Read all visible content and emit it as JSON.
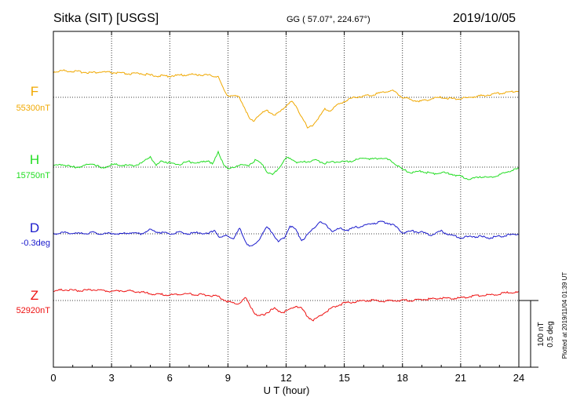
{
  "header": {
    "station": "Sitka (SIT)  [USGS]",
    "coords": "GG ( 57.07°, 224.67°)",
    "date": "2019/10/05"
  },
  "footer": {
    "xlabel": "U T (hour)",
    "scale_nt": "100 nT",
    "scale_deg": "0.5 deg",
    "plotted": "Plotted at 2019/11/04 01:39 UT"
  },
  "chart_data": {
    "type": "line",
    "title": "Sitka (SIT)  [USGS]",
    "xlabel": "U T (hour)",
    "xlim": [
      0,
      24
    ],
    "x_ticks": [
      "0",
      "3",
      "6",
      "9",
      "12",
      "15",
      "18",
      "21",
      "24"
    ],
    "grid": true,
    "series": [
      {
        "name": "F",
        "baseline_label": "55300nT",
        "unit": "nT",
        "color": "#f0a800",
        "x": [
          0,
          0.5,
          1,
          1.5,
          2,
          2.5,
          3,
          3.5,
          4,
          4.5,
          5,
          5.5,
          6,
          6.5,
          7,
          7.5,
          8,
          8.5,
          8.8,
          9,
          9.3,
          9.6,
          9.9,
          10.1,
          10.3,
          10.6,
          11,
          11.4,
          11.7,
          12,
          12.3,
          12.6,
          12.9,
          13.1,
          13.3,
          13.7,
          14,
          14.3,
          14.6,
          15,
          15.5,
          16,
          16.5,
          17,
          17.5,
          18,
          18.5,
          19,
          19.5,
          20,
          20.5,
          21,
          21.5,
          22,
          22.5,
          23,
          23.5,
          24
        ],
        "values": [
          38,
          40,
          39,
          38,
          37,
          38,
          37,
          36,
          35,
          36,
          33,
          32,
          32,
          33,
          34,
          34,
          33,
          31,
          10,
          3,
          2,
          0,
          -18,
          -32,
          -36,
          -26,
          -20,
          -26,
          -22,
          -12,
          -6,
          -18,
          -34,
          -46,
          -44,
          -30,
          -18,
          -20,
          -12,
          -6,
          0,
          2,
          4,
          8,
          10,
          0,
          -4,
          -6,
          -2,
          0,
          -2,
          -2,
          0,
          2,
          4,
          6,
          8,
          10
        ]
      },
      {
        "name": "H",
        "baseline_label": "15750nT",
        "unit": "nT",
        "color": "#22dd22",
        "x": [
          0,
          0.5,
          1,
          1.5,
          2,
          2.5,
          3,
          3.5,
          4,
          4.5,
          5,
          5.3,
          5.6,
          6,
          6.5,
          7,
          7.5,
          8,
          8.2,
          8.5,
          8.8,
          9,
          9.3,
          9.6,
          10,
          10.4,
          10.8,
          11,
          11.3,
          11.6,
          12,
          12.3,
          12.6,
          13,
          13.5,
          14,
          14.5,
          15,
          15.5,
          16,
          16.5,
          17,
          17.5,
          18,
          18.5,
          19,
          19.5,
          20,
          20.5,
          21,
          21.5,
          22,
          22.5,
          23,
          23.5,
          24
        ],
        "values": [
          2,
          4,
          0,
          1,
          6,
          -2,
          4,
          3,
          2,
          5,
          16,
          2,
          10,
          6,
          4,
          8,
          6,
          10,
          4,
          22,
          4,
          -4,
          0,
          4,
          2,
          10,
          4,
          -6,
          -12,
          -2,
          14,
          12,
          6,
          8,
          10,
          6,
          8,
          8,
          10,
          14,
          12,
          14,
          8,
          -4,
          -8,
          -6,
          -10,
          -8,
          -10,
          -14,
          -18,
          -14,
          -16,
          -12,
          -6,
          -2
        ]
      },
      {
        "name": "D",
        "baseline_label": "-0.3deg",
        "unit": "deg",
        "color": "#1a1acc",
        "x": [
          0,
          0.5,
          1,
          1.5,
          2,
          2.5,
          3,
          3.5,
          4,
          4.5,
          5,
          5.5,
          6,
          6.5,
          7,
          7.5,
          8,
          8.3,
          8.6,
          9,
          9.3,
          9.6,
          9.9,
          10.1,
          10.4,
          10.7,
          11,
          11.3,
          11.6,
          11.9,
          12.2,
          12.5,
          12.8,
          13.1,
          13.4,
          13.7,
          14,
          14.4,
          14.8,
          15.2,
          15.6,
          16,
          16.5,
          17,
          17.5,
          18,
          18.5,
          19,
          19.5,
          20,
          20.5,
          21,
          21.5,
          22,
          22.5,
          23,
          23.5,
          24
        ],
        "values": [
          0,
          2,
          1,
          0,
          2,
          0,
          1,
          0,
          2,
          0,
          6,
          2,
          0,
          2,
          0,
          2,
          0,
          6,
          -6,
          -2,
          -8,
          8,
          -10,
          -20,
          -16,
          -4,
          10,
          2,
          -12,
          -6,
          12,
          6,
          -10,
          -2,
          8,
          18,
          14,
          4,
          8,
          6,
          10,
          12,
          16,
          18,
          14,
          2,
          4,
          2,
          -2,
          4,
          -2,
          -6,
          -4,
          -4,
          -6,
          -4,
          -2,
          0
        ]
      },
      {
        "name": "Z",
        "baseline_label": "52920nT",
        "unit": "nT",
        "color": "#ee1111",
        "x": [
          0,
          0.5,
          1,
          1.5,
          2,
          2.5,
          3,
          3.5,
          4,
          4.5,
          5,
          5.5,
          6,
          6.5,
          7,
          7.5,
          8,
          8.5,
          9,
          9.3,
          9.6,
          9.9,
          10.2,
          10.5,
          10.8,
          11,
          11.4,
          11.8,
          12.2,
          12.5,
          12.8,
          13.1,
          13.4,
          13.8,
          14.2,
          14.6,
          15,
          15.5,
          16,
          16.5,
          17,
          17.5,
          18,
          18.5,
          19,
          19.5,
          20,
          20.5,
          21,
          21.5,
          22,
          22.5,
          23,
          23.5,
          24
        ],
        "values": [
          14,
          16,
          15,
          15,
          16,
          15,
          14,
          15,
          14,
          13,
          10,
          9,
          8,
          10,
          10,
          9,
          8,
          6,
          -2,
          -4,
          -4,
          4,
          -10,
          -24,
          -22,
          -18,
          -12,
          -18,
          -14,
          -8,
          -12,
          -24,
          -30,
          -22,
          -14,
          -8,
          -4,
          -2,
          0,
          0,
          -1,
          0,
          0,
          0,
          2,
          2,
          4,
          3,
          4,
          6,
          8,
          8,
          10,
          12,
          12
        ]
      }
    ]
  }
}
